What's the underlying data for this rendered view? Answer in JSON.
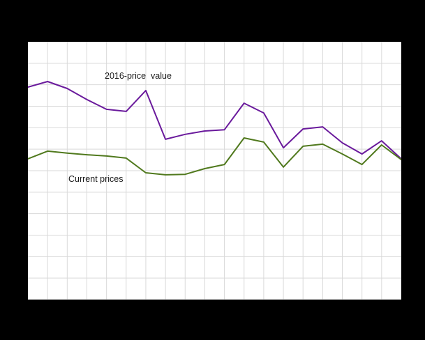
{
  "chart": {
    "background_color": "#000000",
    "plot_background_color": "#ffffff",
    "grid_color": "#d9d9d9"
  },
  "chart_data": {
    "type": "line",
    "x": [
      1,
      2,
      3,
      4,
      5,
      6,
      7,
      8,
      9,
      10,
      11,
      12,
      13,
      14,
      15,
      16,
      17,
      18,
      19,
      20
    ],
    "series": [
      {
        "name": "2016-price value",
        "color": "#6a1a9c",
        "values": [
          82.4,
          84.6,
          81.9,
          77.6,
          73.8,
          73.0,
          81.1,
          62.2,
          64.1,
          65.4,
          65.9,
          76.2,
          72.4,
          58.9,
          66.2,
          67.0,
          60.8,
          56.5,
          61.6,
          54.6
        ]
      },
      {
        "name": "Current prices",
        "color": "#50791d",
        "values": [
          54.6,
          57.6,
          56.8,
          56.2,
          55.7,
          54.9,
          49.2,
          48.4,
          48.6,
          50.8,
          52.4,
          62.7,
          61.1,
          51.4,
          59.5,
          60.3,
          56.5,
          52.4,
          60.0,
          54.3
        ]
      }
    ],
    "annotations": [
      {
        "text": "2016-price  value",
        "series": "2016-price value"
      },
      {
        "text": "Current prices",
        "series": "Current prices"
      }
    ],
    "title": "",
    "xlabel": "",
    "ylabel": "",
    "ylim": [
      0,
      100
    ],
    "grid": true,
    "v_gridline_count": 20,
    "h_gridline_count": 13,
    "legend_position": "inline-annotations"
  }
}
